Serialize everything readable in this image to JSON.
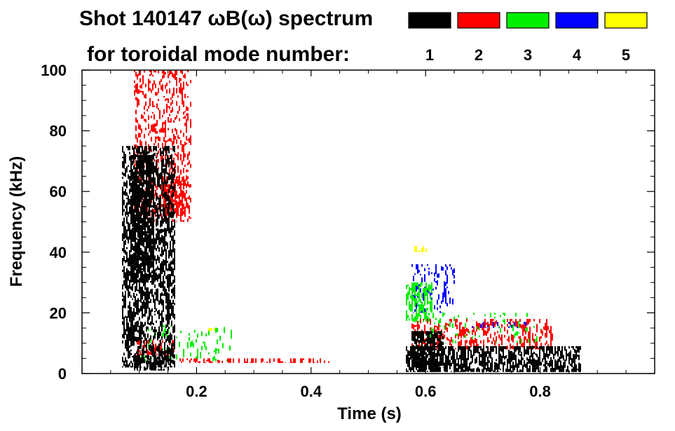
{
  "chart_data": {
    "type": "heatmap",
    "title_line1": "Shot 140147 ωB(ω) spectrum",
    "title_line2": "for toroidal mode number:",
    "xlabel": "Time (s)",
    "ylabel": "Frequency (kHz)",
    "xlim": [
      0.0,
      1.0
    ],
    "ylim": [
      0,
      100
    ],
    "x_ticks": [
      0.2,
      0.4,
      0.6,
      0.8
    ],
    "x_tick_labels": [
      "0.2",
      "0.4",
      "0.6",
      "0.8"
    ],
    "y_ticks": [
      0,
      20,
      40,
      60,
      80,
      100
    ],
    "y_tick_labels": [
      "0",
      "20",
      "40",
      "60",
      "80",
      "100"
    ],
    "legend": [
      {
        "label": "1",
        "color": "#000000"
      },
      {
        "label": "2",
        "color": "#ff0000"
      },
      {
        "label": "3",
        "color": "#00ee00"
      },
      {
        "label": "4",
        "color": "#0000ff"
      },
      {
        "label": "5",
        "color": "#ffff00"
      }
    ],
    "bursts": [
      {
        "mode": 1,
        "t": [
          0.07,
          0.16
        ],
        "f": [
          2,
          75
        ],
        "density": 0.55
      },
      {
        "mode": 1,
        "t": [
          0.085,
          0.125
        ],
        "f": [
          30,
          72
        ],
        "density": 0.75
      },
      {
        "mode": 1,
        "t": [
          0.09,
          0.15
        ],
        "f": [
          1,
          6
        ],
        "density": 0.6
      },
      {
        "mode": 1,
        "t": [
          0.565,
          0.87
        ],
        "f": [
          0.5,
          9
        ],
        "density": 0.65
      },
      {
        "mode": 1,
        "t": [
          0.575,
          0.63
        ],
        "f": [
          2,
          14
        ],
        "density": 0.7
      },
      {
        "mode": 2,
        "t": [
          0.09,
          0.19
        ],
        "f": [
          50,
          100
        ],
        "density": 0.3
      },
      {
        "mode": 2,
        "t": [
          0.14,
          0.18
        ],
        "f": [
          52,
          65
        ],
        "density": 0.65
      },
      {
        "mode": 2,
        "t": [
          0.09,
          0.16
        ],
        "f": [
          6,
          11
        ],
        "density": 0.4
      },
      {
        "mode": 2,
        "t": [
          0.17,
          0.43
        ],
        "f": [
          3.5,
          5
        ],
        "density": 0.35
      },
      {
        "mode": 2,
        "t": [
          0.575,
          0.82
        ],
        "f": [
          8,
          18
        ],
        "density": 0.3
      },
      {
        "mode": 3,
        "t": [
          0.565,
          0.61
        ],
        "f": [
          17,
          30
        ],
        "density": 0.6
      },
      {
        "mode": 3,
        "t": [
          0.6,
          0.8
        ],
        "f": [
          10,
          20
        ],
        "density": 0.12
      },
      {
        "mode": 3,
        "t": [
          0.1,
          0.26
        ],
        "f": [
          4,
          16
        ],
        "density": 0.1
      },
      {
        "mode": 4,
        "t": [
          0.575,
          0.65
        ],
        "f": [
          20,
          36
        ],
        "density": 0.25
      },
      {
        "mode": 4,
        "t": [
          0.68,
          0.78
        ],
        "f": [
          15,
          17
        ],
        "density": 0.3
      },
      {
        "mode": 5,
        "t": [
          0.58,
          0.6
        ],
        "f": [
          40,
          42
        ],
        "density": 0.4
      },
      {
        "mode": 5,
        "t": [
          0.22,
          0.23
        ],
        "f": [
          14,
          15
        ],
        "density": 0.6
      }
    ]
  }
}
